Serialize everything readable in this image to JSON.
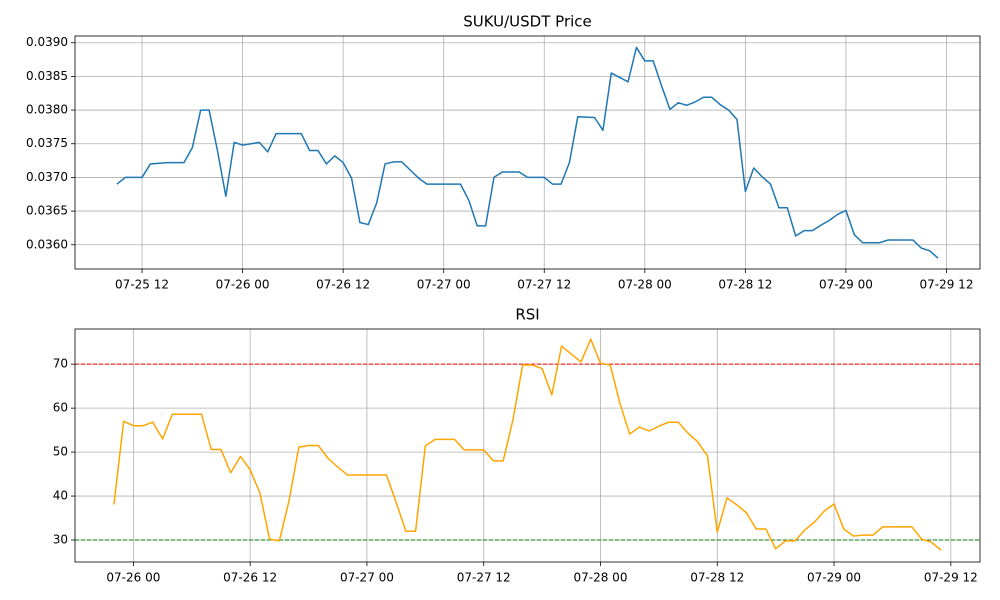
{
  "chart_data": [
    {
      "type": "line",
      "title": "SUKU/USDT Price",
      "color": "#1f77b4",
      "grid": true,
      "x": [
        "07-25 09",
        "07-25 10",
        "07-25 12",
        "07-25 13",
        "07-25 15",
        "07-25 17",
        "07-25 18",
        "07-25 19",
        "07-25 20",
        "07-25 21",
        "07-25 22",
        "07-25 23",
        "07-26 00",
        "07-26 01",
        "07-26 02",
        "07-26 03",
        "07-26 04",
        "07-26 07",
        "07-26 08",
        "07-26 09",
        "07-26 10",
        "07-26 11",
        "07-26 12",
        "07-26 13",
        "07-26 14",
        "07-26 15",
        "07-26 16",
        "07-26 17",
        "07-26 18",
        "07-26 19",
        "07-26 20",
        "07-26 21",
        "07-26 22",
        "07-27 02",
        "07-27 03",
        "07-27 04",
        "07-27 05",
        "07-27 06",
        "07-27 07",
        "07-27 09",
        "07-27 10",
        "07-27 12",
        "07-27 13",
        "07-27 14",
        "07-27 15",
        "07-27 16",
        "07-27 18",
        "07-27 19",
        "07-27 20",
        "07-27 22",
        "07-27 23",
        "07-28 00",
        "07-28 01",
        "07-28 02",
        "07-28 03",
        "07-28 04",
        "07-28 05",
        "07-28 06",
        "07-28 07",
        "07-28 08",
        "07-28 09",
        "07-28 10",
        "07-28 11",
        "07-28 12",
        "07-28 13",
        "07-28 14",
        "07-28 15",
        "07-28 16",
        "07-28 17",
        "07-28 18",
        "07-28 19",
        "07-28 20",
        "07-28 21",
        "07-28 22",
        "07-28 23",
        "07-29 00",
        "07-29 01",
        "07-29 02",
        "07-29 03",
        "07-29 04",
        "07-29 05",
        "07-29 08",
        "07-29 09",
        "07-29 10",
        "07-29 11"
      ],
      "values": [
        0.0369,
        0.037,
        0.037,
        0.0372,
        0.03722,
        0.03722,
        0.03744,
        0.038,
        0.038,
        0.0374,
        0.03672,
        0.03752,
        0.03748,
        0.0375,
        0.03752,
        0.03738,
        0.03765,
        0.03765,
        0.0374,
        0.0374,
        0.0372,
        0.03732,
        0.03722,
        0.03699,
        0.03633,
        0.0363,
        0.03662,
        0.0372,
        0.03723,
        0.03723,
        0.03711,
        0.03699,
        0.0369,
        0.0369,
        0.03666,
        0.03628,
        0.03628,
        0.037,
        0.03708,
        0.03708,
        0.037,
        0.037,
        0.0369,
        0.0369,
        0.03722,
        0.0379,
        0.03789,
        0.0377,
        0.03855,
        0.03842,
        0.03893,
        0.03873,
        0.03873,
        0.03836,
        0.03801,
        0.03811,
        0.03807,
        0.03812,
        0.03819,
        0.03819,
        0.03808,
        0.038,
        0.03786,
        0.03679,
        0.03714,
        0.03701,
        0.0369,
        0.03655,
        0.03655,
        0.03613,
        0.03621,
        0.03621,
        0.03629,
        0.03636,
        0.03645,
        0.03651,
        0.03615,
        0.03603,
        0.03603,
        0.03603,
        0.03607,
        0.03607,
        0.03595,
        0.03591,
        0.0358
      ],
      "xlim": [
        "07-25 04",
        "07-29 16"
      ],
      "xticks": [
        "07-25 12",
        "07-26 00",
        "07-26 12",
        "07-27 00",
        "07-27 12",
        "07-28 00",
        "07-28 12",
        "07-29 00",
        "07-29 12"
      ],
      "ylim": [
        0.03564,
        0.0391
      ],
      "yticks": [
        {
          "value": 0.036,
          "label": "0.0360"
        },
        0.0365,
        {
          "value": 0.037,
          "label": "0.0370"
        },
        0.0375,
        {
          "value": 0.038,
          "label": "0.0380"
        },
        0.0385,
        {
          "value": 0.039,
          "label": "0.0390"
        }
      ]
    },
    {
      "type": "line",
      "title": "RSI",
      "color": "#ffa500",
      "grid": true,
      "x": [
        "07-25 22",
        "07-25 23",
        "07-26 00",
        "07-26 01",
        "07-26 02",
        "07-26 03",
        "07-26 04",
        "07-26 07",
        "07-26 08",
        "07-26 09",
        "07-26 10",
        "07-26 11",
        "07-26 12",
        "07-26 13",
        "07-26 14",
        "07-26 15",
        "07-26 16",
        "07-26 17",
        "07-26 18",
        "07-26 19",
        "07-26 20",
        "07-26 21",
        "07-26 22",
        "07-27 02",
        "07-27 03",
        "07-27 04",
        "07-27 05",
        "07-27 06",
        "07-27 07",
        "07-27 09",
        "07-27 10",
        "07-27 12",
        "07-27 13",
        "07-27 14",
        "07-27 15",
        "07-27 16",
        "07-27 17",
        "07-27 18",
        "07-27 19",
        "07-27 20",
        "07-27 21",
        "07-27 22",
        "07-27 23",
        "07-28 00",
        "07-28 01",
        "07-28 02",
        "07-28 03",
        "07-28 04",
        "07-28 05",
        "07-28 06",
        "07-28 07",
        "07-28 08",
        "07-28 09",
        "07-28 10",
        "07-28 11",
        "07-28 12",
        "07-28 13",
        "07-28 14",
        "07-28 15",
        "07-28 16",
        "07-28 17",
        "07-28 18",
        "07-28 19",
        "07-28 20",
        "07-28 21",
        "07-28 22",
        "07-28 23",
        "07-29 00",
        "07-29 01",
        "07-29 02",
        "07-29 03",
        "07-29 04",
        "07-29 05",
        "07-29 08",
        "07-29 09",
        "07-29 10",
        "07-29 11"
      ],
      "values": [
        38.1,
        57,
        56,
        56,
        56.8,
        53,
        58.6,
        58.6,
        50.6,
        50.6,
        45.3,
        49,
        46,
        40.7,
        30.2,
        29.8,
        39,
        51.1,
        51.5,
        51.5,
        48.6,
        46.6,
        44.8,
        44.8,
        38.6,
        32,
        32,
        51.4,
        52.9,
        52.9,
        50.5,
        50.5,
        48,
        48,
        57.3,
        69.8,
        69.8,
        69,
        63,
        74.1,
        72.3,
        70.5,
        75.7,
        70.2,
        69.8,
        61.1,
        54.1,
        55.7,
        54.8,
        55.9,
        56.8,
        56.8,
        54.3,
        52.3,
        49.1,
        31.8,
        39.6,
        38,
        36.2,
        32.5,
        32.5,
        28,
        29.8,
        29.8,
        32.3,
        34.1,
        36.6,
        38.2,
        32.5,
        30.9,
        31.1,
        31.1,
        33,
        33,
        30.2,
        29.5,
        27.7
      ],
      "reference_lines": [
        {
          "value": 70,
          "color": "#ff0000"
        },
        {
          "value": 30,
          "color": "#008000"
        }
      ],
      "xlim": [
        "07-25 18",
        "07-29 15"
      ],
      "xticks": [
        "07-26 00",
        "07-26 12",
        "07-27 00",
        "07-27 12",
        "07-28 00",
        "07-28 12",
        "07-29 00",
        "07-29 12"
      ],
      "ylim": [
        25,
        78
      ],
      "yticks": [
        30,
        40,
        50,
        60,
        70
      ]
    }
  ]
}
